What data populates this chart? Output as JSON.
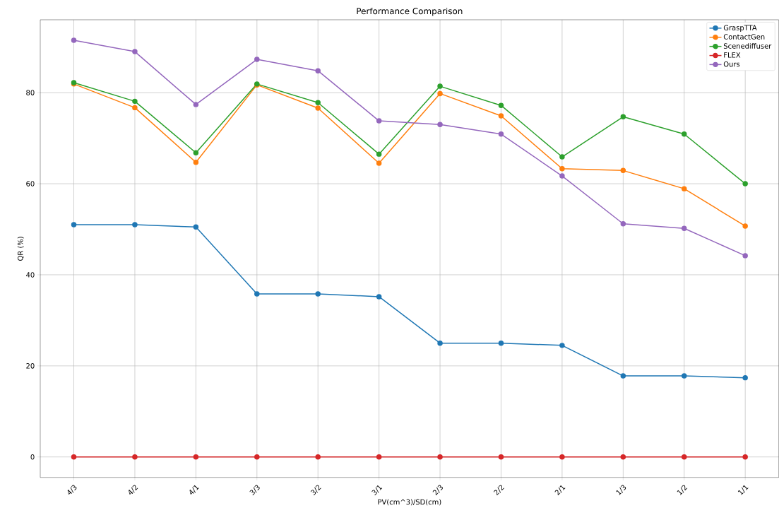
{
  "chart_data": {
    "type": "line",
    "title": "Performance Comparison",
    "xlabel": "PV(cm^3)/SD(cm)",
    "ylabel": "QR (%)",
    "categories": [
      "4/3",
      "4/2",
      "4/1",
      "3/3",
      "3/2",
      "3/1",
      "2/3",
      "2/2",
      "2/1",
      "1/3",
      "1/2",
      "1/1"
    ],
    "series": [
      {
        "name": "GraspTTA",
        "color": "#1f77b4",
        "values": [
          51.0,
          51.0,
          50.5,
          35.8,
          35.8,
          35.2,
          25.0,
          25.0,
          24.5,
          17.8,
          17.8,
          17.4
        ]
      },
      {
        "name": "ContactGen",
        "color": "#ff7f0e",
        "values": [
          81.9,
          76.7,
          64.7,
          81.7,
          76.6,
          64.5,
          79.8,
          74.9,
          63.3,
          62.9,
          58.9,
          50.7
        ]
      },
      {
        "name": "Scenediffuser",
        "color": "#2ca02c",
        "values": [
          82.2,
          78.1,
          66.8,
          81.9,
          77.8,
          66.5,
          81.4,
          77.2,
          65.9,
          74.7,
          70.9,
          60.0
        ]
      },
      {
        "name": "FLEX",
        "color": "#d62728",
        "values": [
          0,
          0,
          0,
          0,
          0,
          0,
          0,
          0,
          0,
          0,
          0,
          0
        ]
      },
      {
        "name": "Ours",
        "color": "#9467bd",
        "values": [
          91.5,
          89.0,
          77.4,
          87.3,
          84.8,
          73.8,
          73.0,
          70.9,
          61.7,
          51.2,
          50.2,
          44.2
        ]
      }
    ],
    "ylim": [
      -4.5,
      96
    ],
    "yticks": [
      0,
      20,
      40,
      60,
      80
    ],
    "grid": true,
    "legend": "top right",
    "marker": "circle",
    "line_style": "solid"
  }
}
